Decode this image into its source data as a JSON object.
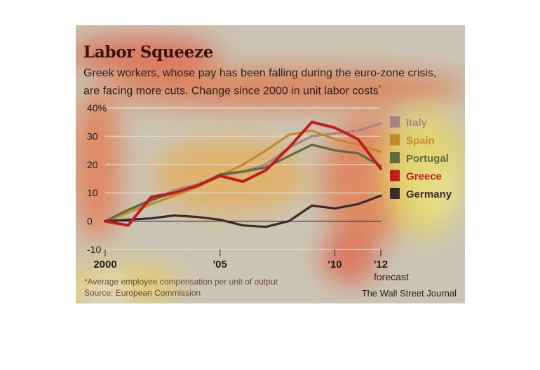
{
  "header": {
    "title": "Labor Squeeze",
    "subtitle": "Greek workers, whose pay has been falling during the euro-zone crisis, are facing more cuts. Change since 2000 in unit labor costs",
    "subtitle_mark": "*"
  },
  "footer": {
    "footnote_line1": "*Average employee compensation per unit of output",
    "footnote_line2": "Source: European Commission",
    "credit": "The Wall Street Journal",
    "forecast_label": "forecast"
  },
  "colors": {
    "background": "#cbc4b4",
    "gridline": "#e2ddd2",
    "zero_line": "#1a1a1a"
  },
  "chart_data": {
    "type": "line",
    "x": [
      2000,
      2001,
      2002,
      2003,
      2004,
      2005,
      2006,
      2007,
      2008,
      2009,
      2010,
      2011,
      2012
    ],
    "x_tick_values": [
      2000,
      2005,
      2010,
      2012
    ],
    "x_tick_labels": [
      "2000",
      "'05",
      "'10",
      "'12"
    ],
    "y_tick_values": [
      -10,
      0,
      10,
      20,
      30,
      40
    ],
    "y_tick_labels": [
      "-10",
      "0",
      "10",
      "20",
      "30",
      "40%"
    ],
    "ylim": [
      -10,
      40
    ],
    "xlim": [
      2000,
      2012
    ],
    "grid": true,
    "legend_position": "right",
    "series": [
      {
        "name": "Italy",
        "color": "#a78583",
        "values": [
          0,
          3,
          7,
          11,
          13,
          16,
          17.5,
          20,
          26,
          30,
          31,
          32,
          34.5
        ]
      },
      {
        "name": "Spain",
        "color": "#c48a2e",
        "values": [
          0,
          3,
          6,
          9,
          12,
          16,
          20,
          25,
          30.5,
          32,
          29,
          27,
          24.5
        ]
      },
      {
        "name": "Portugal",
        "color": "#5e6b3c",
        "values": [
          0,
          4,
          7.5,
          10,
          12.5,
          16.5,
          17.5,
          19,
          23,
          27,
          25,
          24,
          19.5
        ]
      },
      {
        "name": "Greece",
        "color": "#c01d1d",
        "values": [
          0,
          -1.5,
          8.5,
          10,
          12.5,
          16,
          14,
          18,
          26,
          35,
          33,
          29,
          18.5
        ]
      },
      {
        "name": "Germany",
        "color": "#3d2a2a",
        "values": [
          0,
          0.5,
          1,
          2,
          1.5,
          0.5,
          -1.5,
          -2,
          0,
          5.5,
          4.5,
          6,
          9
        ]
      }
    ]
  }
}
